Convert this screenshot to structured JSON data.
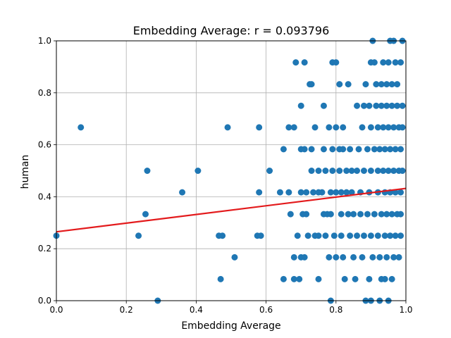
{
  "chart_data": {
    "type": "scatter",
    "title": "Embedding Average: r = 0.093796",
    "xlabel": "Embedding Average",
    "ylabel": "human",
    "xlim": [
      0.0,
      1.0
    ],
    "ylim": [
      0.0,
      1.0
    ],
    "xticks": [
      "0.0",
      "0.2",
      "0.4",
      "0.6",
      "0.8",
      "1.0"
    ],
    "yticks": [
      "0.0",
      "0.2",
      "0.4",
      "0.6",
      "0.8",
      "1.0"
    ],
    "grid": true,
    "point_color": "#1f77b4",
    "fit_color": "#e31a1c",
    "fit_line": {
      "x": [
        0.0,
        1.0
      ],
      "y": [
        0.265,
        0.432
      ]
    },
    "points": [
      [
        0.0,
        0.25
      ],
      [
        0.07,
        0.667
      ],
      [
        0.235,
        0.25
      ],
      [
        0.255,
        0.333
      ],
      [
        0.26,
        0.5
      ],
      [
        0.29,
        0.0
      ],
      [
        0.36,
        0.417
      ],
      [
        0.405,
        0.5
      ],
      [
        0.465,
        0.25
      ],
      [
        0.475,
        0.25
      ],
      [
        0.47,
        0.083
      ],
      [
        0.49,
        0.667
      ],
      [
        0.51,
        0.167
      ],
      [
        0.575,
        0.25
      ],
      [
        0.585,
        0.25
      ],
      [
        0.58,
        0.667
      ],
      [
        0.58,
        0.417
      ],
      [
        0.61,
        0.5
      ],
      [
        0.64,
        0.417
      ],
      [
        0.65,
        0.583
      ],
      [
        0.65,
        0.083
      ],
      [
        0.665,
        0.417
      ],
      [
        0.665,
        0.667
      ],
      [
        0.67,
        0.333
      ],
      [
        0.68,
        0.667
      ],
      [
        0.685,
        0.917
      ],
      [
        0.68,
        0.167
      ],
      [
        0.68,
        0.083
      ],
      [
        0.695,
        0.083
      ],
      [
        0.69,
        0.25
      ],
      [
        0.7,
        0.75
      ],
      [
        0.7,
        0.583
      ],
      [
        0.7,
        0.417
      ],
      [
        0.705,
        0.333
      ],
      [
        0.7,
        0.167
      ],
      [
        0.71,
        0.917
      ],
      [
        0.71,
        0.583
      ],
      [
        0.715,
        0.417
      ],
      [
        0.715,
        0.333
      ],
      [
        0.71,
        0.167
      ],
      [
        0.72,
        0.25
      ],
      [
        0.725,
        0.833
      ],
      [
        0.73,
        0.833
      ],
      [
        0.73,
        0.583
      ],
      [
        0.73,
        0.5
      ],
      [
        0.735,
        0.417
      ],
      [
        0.74,
        0.25
      ],
      [
        0.74,
        0.667
      ],
      [
        0.75,
        0.5
      ],
      [
        0.75,
        0.417
      ],
      [
        0.75,
        0.25
      ],
      [
        0.75,
        0.083
      ],
      [
        0.76,
        0.417
      ],
      [
        0.765,
        0.75
      ],
      [
        0.765,
        0.583
      ],
      [
        0.765,
        0.333
      ],
      [
        0.77,
        0.5
      ],
      [
        0.77,
        0.25
      ],
      [
        0.775,
        0.333
      ],
      [
        0.78,
        0.667
      ],
      [
        0.785,
        0.417
      ],
      [
        0.785,
        0.333
      ],
      [
        0.78,
        0.167
      ],
      [
        0.785,
        0.0
      ],
      [
        0.79,
        0.917
      ],
      [
        0.79,
        0.583
      ],
      [
        0.79,
        0.5
      ],
      [
        0.795,
        0.25
      ],
      [
        0.8,
        0.917
      ],
      [
        0.8,
        0.667
      ],
      [
        0.8,
        0.417
      ],
      [
        0.8,
        0.167
      ],
      [
        0.81,
        0.833
      ],
      [
        0.81,
        0.583
      ],
      [
        0.81,
        0.5
      ],
      [
        0.815,
        0.417
      ],
      [
        0.815,
        0.333
      ],
      [
        0.815,
        0.25
      ],
      [
        0.82,
        0.667
      ],
      [
        0.82,
        0.583
      ],
      [
        0.82,
        0.167
      ],
      [
        0.825,
        0.083
      ],
      [
        0.83,
        0.5
      ],
      [
        0.83,
        0.417
      ],
      [
        0.835,
        0.833
      ],
      [
        0.835,
        0.333
      ],
      [
        0.84,
        0.25
      ],
      [
        0.84,
        0.583
      ],
      [
        0.845,
        0.5
      ],
      [
        0.845,
        0.417
      ],
      [
        0.85,
        0.333
      ],
      [
        0.85,
        0.167
      ],
      [
        0.855,
        0.083
      ],
      [
        0.86,
        0.75
      ],
      [
        0.86,
        0.5
      ],
      [
        0.86,
        0.25
      ],
      [
        0.865,
        0.583
      ],
      [
        0.87,
        0.417
      ],
      [
        0.87,
        0.333
      ],
      [
        0.875,
        0.667
      ],
      [
        0.875,
        0.167
      ],
      [
        0.88,
        0.75
      ],
      [
        0.88,
        0.5
      ],
      [
        0.88,
        0.25
      ],
      [
        0.885,
        0.833
      ],
      [
        0.885,
        0.0
      ],
      [
        0.89,
        0.583
      ],
      [
        0.89,
        0.333
      ],
      [
        0.895,
        0.75
      ],
      [
        0.895,
        0.417
      ],
      [
        0.895,
        0.083
      ],
      [
        0.9,
        0.917
      ],
      [
        0.9,
        0.667
      ],
      [
        0.9,
        0.5
      ],
      [
        0.9,
        0.25
      ],
      [
        0.9,
        0.0
      ],
      [
        0.905,
        1.0
      ],
      [
        0.905,
        0.167
      ],
      [
        0.91,
        0.917
      ],
      [
        0.91,
        0.583
      ],
      [
        0.91,
        0.333
      ],
      [
        0.915,
        0.833
      ],
      [
        0.915,
        0.75
      ],
      [
        0.92,
        0.667
      ],
      [
        0.92,
        0.5
      ],
      [
        0.92,
        0.417
      ],
      [
        0.92,
        0.25
      ],
      [
        0.925,
        0.583
      ],
      [
        0.925,
        0.167
      ],
      [
        0.925,
        0.0
      ],
      [
        0.93,
        0.833
      ],
      [
        0.93,
        0.75
      ],
      [
        0.93,
        0.333
      ],
      [
        0.93,
        0.083
      ],
      [
        0.935,
        0.917
      ],
      [
        0.935,
        0.667
      ],
      [
        0.935,
        0.5
      ],
      [
        0.94,
        0.583
      ],
      [
        0.94,
        0.417
      ],
      [
        0.94,
        0.25
      ],
      [
        0.94,
        0.083
      ],
      [
        0.945,
        0.833
      ],
      [
        0.945,
        0.75
      ],
      [
        0.945,
        0.333
      ],
      [
        0.945,
        0.167
      ],
      [
        0.95,
        0.917
      ],
      [
        0.95,
        0.667
      ],
      [
        0.95,
        0.5
      ],
      [
        0.95,
        0.0
      ],
      [
        0.955,
        1.0
      ],
      [
        0.955,
        0.583
      ],
      [
        0.955,
        0.417
      ],
      [
        0.955,
        0.25
      ],
      [
        0.96,
        0.833
      ],
      [
        0.96,
        0.75
      ],
      [
        0.96,
        0.333
      ],
      [
        0.96,
        0.083
      ],
      [
        0.965,
        1.0
      ],
      [
        0.965,
        0.667
      ],
      [
        0.965,
        0.5
      ],
      [
        0.965,
        0.167
      ],
      [
        0.97,
        0.917
      ],
      [
        0.97,
        0.583
      ],
      [
        0.97,
        0.417
      ],
      [
        0.97,
        0.25
      ],
      [
        0.975,
        0.75
      ],
      [
        0.975,
        0.333
      ],
      [
        0.98,
        0.667
      ],
      [
        0.98,
        0.5
      ],
      [
        0.98,
        0.167
      ],
      [
        0.985,
        0.917
      ],
      [
        0.985,
        0.583
      ],
      [
        0.985,
        0.417
      ],
      [
        0.985,
        0.25
      ],
      [
        0.985,
        0.333
      ],
      [
        0.99,
        1.0
      ],
      [
        0.99,
        0.667
      ],
      [
        0.99,
        0.75
      ],
      [
        0.975,
        0.833
      ],
      [
        0.99,
        0.5
      ]
    ]
  }
}
